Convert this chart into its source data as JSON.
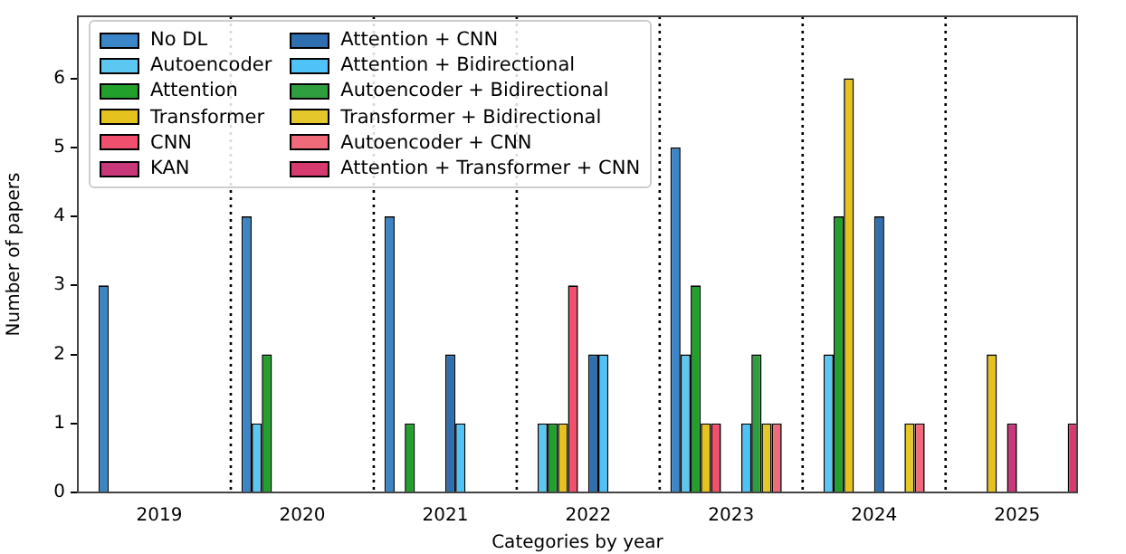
{
  "chart_data": {
    "type": "bar",
    "xlabel": "Categories by year",
    "ylabel": "Number of papers",
    "x": [
      2019,
      2020,
      2021,
      2022,
      2023,
      2024,
      2025
    ],
    "xlim": [
      2018.43,
      2025.42
    ],
    "xticks": [
      2019,
      2020,
      2021,
      2022,
      2023,
      2024,
      2025
    ],
    "ylim": [
      0,
      6.9
    ],
    "yticks": [
      0,
      1,
      2,
      3,
      4,
      5,
      6
    ],
    "grid": false,
    "legend": "top left",
    "ref_lines": [
      {
        "axis": "x",
        "value": 2019.5,
        "line_style": "dotted",
        "color": "#000000"
      },
      {
        "axis": "x",
        "value": 2020.5,
        "line_style": "dotted",
        "color": "#000000"
      },
      {
        "axis": "x",
        "value": 2021.5,
        "line_style": "dotted",
        "color": "#000000"
      },
      {
        "axis": "x",
        "value": 2022.5,
        "line_style": "dotted",
        "color": "#000000"
      },
      {
        "axis": "x",
        "value": 2023.5,
        "line_style": "dotted",
        "color": "#000000"
      },
      {
        "axis": "x",
        "value": 2024.5,
        "line_style": "dotted",
        "color": "#000000"
      }
    ],
    "series": [
      {
        "name": "No DL",
        "color": "#3a86c8",
        "values": [
          3,
          4,
          4,
          0,
          5,
          0,
          0
        ]
      },
      {
        "name": "Autoencoder",
        "color": "#5cc8f2",
        "values": [
          0,
          1,
          0,
          1,
          2,
          2,
          0
        ]
      },
      {
        "name": "Attention",
        "color": "#22a02c",
        "values": [
          0,
          2,
          1,
          1,
          3,
          4,
          0
        ]
      },
      {
        "name": "Transformer",
        "color": "#e6c21e",
        "values": [
          0,
          0,
          0,
          1,
          1,
          6,
          2
        ]
      },
      {
        "name": "CNN",
        "color": "#f0506e",
        "values": [
          0,
          0,
          0,
          3,
          1,
          0,
          0
        ]
      },
      {
        "name": "KAN",
        "color": "#c8387a",
        "values": [
          0,
          0,
          0,
          0,
          0,
          0,
          1
        ]
      },
      {
        "name": "Attention + CNN",
        "color": "#2f6fb0",
        "values": [
          0,
          0,
          2,
          2,
          0,
          4,
          0
        ]
      },
      {
        "name": "Attention + Bidirectional",
        "color": "#4fc3f7",
        "values": [
          0,
          0,
          1,
          2,
          1,
          0,
          0
        ]
      },
      {
        "name": "Autoencoder + Bidirectional",
        "color": "#2e9e3e",
        "values": [
          0,
          0,
          0,
          0,
          2,
          0,
          0
        ]
      },
      {
        "name": "Transformer + Bidirectional",
        "color": "#e3c72b",
        "values": [
          0,
          0,
          0,
          0,
          1,
          1,
          0
        ]
      },
      {
        "name": "Autoencoder + CNN",
        "color": "#f06b7a",
        "values": [
          0,
          0,
          0,
          0,
          1,
          1,
          0
        ]
      },
      {
        "name": "Attention + Transformer + CNN",
        "color": "#d63a6e",
        "values": [
          0,
          0,
          0,
          0,
          0,
          0,
          1
        ]
      }
    ]
  }
}
